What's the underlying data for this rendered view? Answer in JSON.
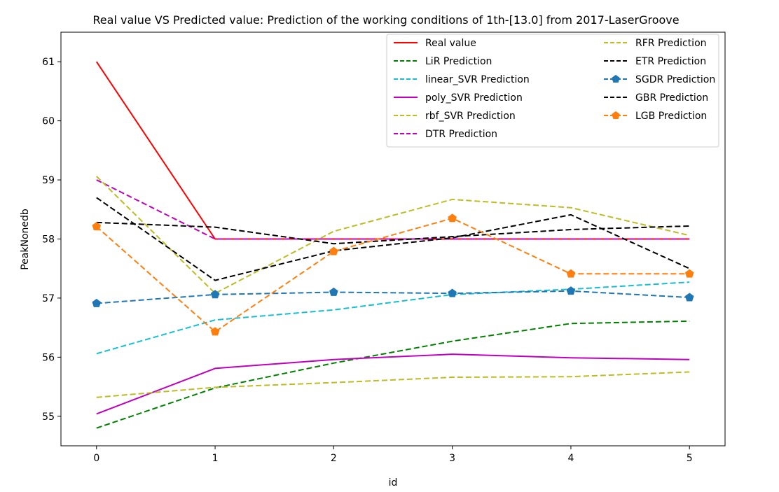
{
  "chart_data": {
    "type": "line",
    "title": "Real value VS Predicted value: Prediction of the working conditions of 1th-[13.0] from 2017-LaserGroove",
    "xlabel": "id",
    "ylabel": "PeakNonedb",
    "xlim": [
      -0.3,
      5.3
    ],
    "ylim": [
      54.5,
      61.5
    ],
    "xticks": [
      0,
      1,
      2,
      3,
      4,
      5
    ],
    "xtick_labels": [
      "0",
      "1",
      "2",
      "3",
      "4",
      "5"
    ],
    "yticks": [
      55,
      56,
      57,
      58,
      59,
      60,
      61
    ],
    "ytick_labels": [
      "55",
      "56",
      "57",
      "58",
      "59",
      "60",
      "61"
    ],
    "grid": false,
    "legend_position": "top-right",
    "x": [
      0,
      1,
      2,
      3,
      4,
      5
    ],
    "series": [
      {
        "name": "Real value",
        "color": "#ff0000",
        "dash": "solid",
        "marker": "none",
        "values": [
          61.0,
          58.0,
          58.0,
          58.0,
          58.0,
          58.0
        ]
      },
      {
        "name": "LiR Prediction",
        "color": "#008000",
        "dash": "dashed",
        "marker": "none",
        "values": [
          54.8,
          55.48,
          55.9,
          56.27,
          56.57,
          56.61
        ]
      },
      {
        "name": "linear_SVR Prediction",
        "color": "#17becf",
        "dash": "dashed",
        "marker": "none",
        "values": [
          56.06,
          56.63,
          56.8,
          57.06,
          57.15,
          57.27
        ]
      },
      {
        "name": "poly_SVR Prediction",
        "color": "#bf00bf",
        "dash": "solid",
        "marker": "none",
        "values": [
          55.04,
          55.81,
          55.96,
          56.05,
          55.99,
          55.96
        ]
      },
      {
        "name": "rbf_SVR Prediction",
        "color": "#bcbd22",
        "dash": "dashed",
        "marker": "none",
        "values": [
          55.32,
          55.49,
          55.57,
          55.66,
          55.67,
          55.75
        ]
      },
      {
        "name": "DTR Prediction",
        "color": "#bf00bf",
        "dash": "dashed",
        "marker": "none",
        "values": [
          59.0,
          58.0,
          58.0,
          58.0,
          58.0,
          58.0
        ]
      },
      {
        "name": "RFR Prediction",
        "color": "#bcbd22",
        "dash": "dashed",
        "marker": "none",
        "values": [
          59.06,
          57.08,
          58.13,
          58.67,
          58.53,
          58.06
        ]
      },
      {
        "name": "ETR Prediction",
        "color": "#000000",
        "dash": "dashed",
        "marker": "none",
        "values": [
          58.28,
          58.2,
          57.92,
          58.04,
          58.16,
          58.22
        ]
      },
      {
        "name": "SGDR Prediction",
        "color": "#1f77b4",
        "dash": "dashed",
        "marker": "pentagon",
        "values": [
          56.91,
          57.06,
          57.1,
          57.08,
          57.12,
          57.01
        ]
      },
      {
        "name": "GBR Prediction",
        "color": "#000000",
        "dash": "dashed",
        "marker": "none",
        "values": [
          58.7,
          57.3,
          57.8,
          58.02,
          58.41,
          57.5
        ]
      },
      {
        "name": "LGB Prediction",
        "color": "#ff7f0e",
        "dash": "dashed",
        "marker": "pentagon",
        "values": [
          58.21,
          56.43,
          57.79,
          58.35,
          57.41,
          57.41
        ]
      }
    ]
  }
}
